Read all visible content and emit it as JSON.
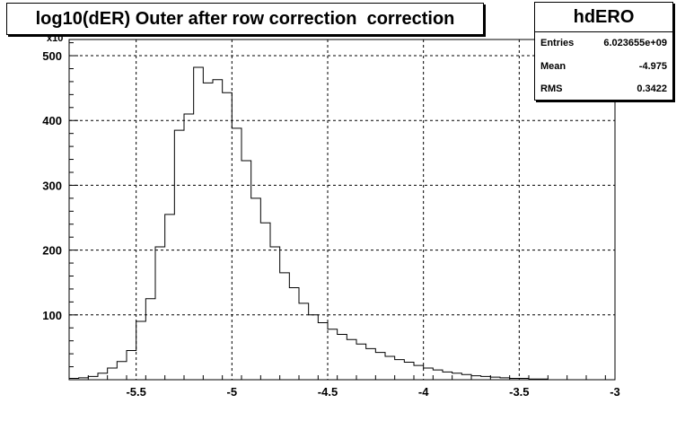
{
  "chart_data": {
    "type": "histogram",
    "title": "log10(dER) Outer after row correction  correction",
    "xlim": [
      -5.85,
      -3.0
    ],
    "ylim": [
      0,
      525
    ],
    "y_exponent_label": "x10",
    "grid": true,
    "x_ticks": [
      {
        "value": -5.5,
        "label": "-5.5"
      },
      {
        "value": -5.0,
        "label": "-5"
      },
      {
        "value": -4.5,
        "label": "-4.5"
      },
      {
        "value": -4.0,
        "label": "-4"
      },
      {
        "value": -3.5,
        "label": "-3.5"
      },
      {
        "value": -3.0,
        "label": "-3"
      }
    ],
    "y_ticks": [
      {
        "value": 100,
        "label": "100"
      },
      {
        "value": 200,
        "label": "200"
      },
      {
        "value": 300,
        "label": "300"
      },
      {
        "value": 400,
        "label": "400"
      },
      {
        "value": 500,
        "label": "500"
      }
    ],
    "bin_width": 0.05,
    "bin_start": -5.85,
    "values": [
      2,
      3,
      5,
      10,
      18,
      28,
      45,
      90,
      125,
      205,
      255,
      385,
      410,
      482,
      458,
      463,
      443,
      388,
      338,
      280,
      242,
      205,
      165,
      142,
      118,
      100,
      88,
      78,
      70,
      62,
      55,
      48,
      42,
      36,
      31,
      27,
      22,
      18,
      15,
      12,
      10,
      8,
      6,
      5,
      4,
      3,
      2,
      2,
      1,
      1,
      0,
      0,
      0,
      0,
      0,
      0,
      0
    ]
  },
  "stats": {
    "name": "hdERO",
    "rows": [
      {
        "label": "Entries",
        "value": "6.023655e+09"
      },
      {
        "label": "Mean",
        "value": "-4.975"
      },
      {
        "label": "RMS",
        "value": "0.3422"
      }
    ]
  }
}
